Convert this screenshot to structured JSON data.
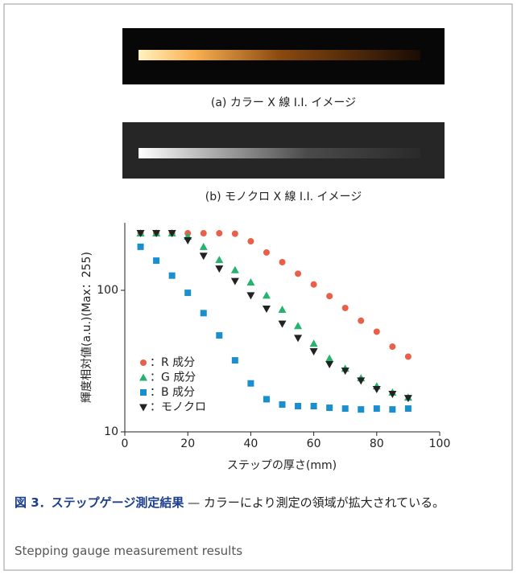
{
  "images": [
    {
      "caption": "(a) カラー X 線 I.I. イメージ"
    },
    {
      "caption": "(b) モノクロ X 線 I.I. イメージ"
    }
  ],
  "chart_data": {
    "type": "scatter",
    "x_label": "ステップの厚さ(mm)",
    "y_label": "輝度相対値(a.u.)(Max：255)",
    "x": [
      5,
      10,
      15,
      20,
      25,
      30,
      35,
      40,
      45,
      50,
      55,
      60,
      65,
      70,
      75,
      80,
      85,
      90
    ],
    "xlim": [
      0,
      100
    ],
    "xticks": [
      0,
      20,
      40,
      60,
      80,
      100
    ],
    "ylim": [
      10,
      300
    ],
    "yticks": [
      10,
      100
    ],
    "y_log": true,
    "legend": "lower-left",
    "series": [
      {
        "name": "：R 成分",
        "color": "#e8604a",
        "marker": "circle",
        "values": [
          253,
          253,
          253,
          253,
          253,
          253,
          251,
          222,
          185,
          158,
          131,
          110,
          91,
          75,
          61,
          51,
          40,
          34
        ]
      },
      {
        "name": "：G 成分",
        "color": "#25b36e",
        "marker": "triangle-up",
        "values": [
          253,
          253,
          253,
          240,
          203,
          164,
          139,
          114,
          92,
          73,
          56,
          42,
          33,
          28,
          24,
          21,
          19,
          17.5
        ]
      },
      {
        "name": "：B 成分",
        "color": "#1a8fd0",
        "marker": "square",
        "values": [
          203,
          162,
          127,
          96,
          69,
          48,
          32,
          22,
          17,
          15.6,
          15.2,
          15.2,
          14.8,
          14.6,
          14.4,
          14.6,
          14.4,
          14.6
        ]
      },
      {
        "name": "：モノクロ",
        "color": "#222222",
        "marker": "triangle-down",
        "values": [
          253,
          253,
          253,
          225,
          175,
          142,
          116,
          92,
          74,
          58,
          46,
          37,
          30,
          27,
          23,
          20,
          18.5,
          17.3
        ]
      }
    ]
  },
  "caption": {
    "title": "図 3．ステップゲージ測定結果",
    "text": "— カラーにより測定の領域が拡大されている。",
    "english": "Stepping gauge measurement results"
  }
}
